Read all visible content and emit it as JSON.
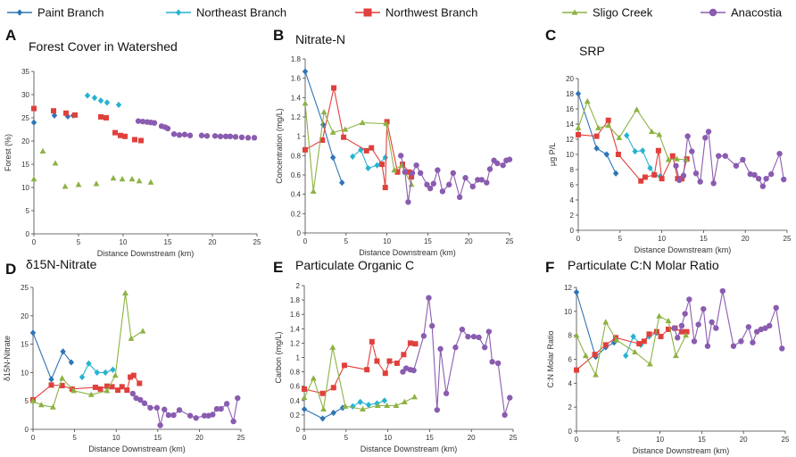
{
  "legend": [
    {
      "name": "Paint Branch",
      "color": "#2e75b6",
      "marker": "diamond"
    },
    {
      "name": "Northeast Branch",
      "color": "#27b3cf",
      "marker": "diamond"
    },
    {
      "name": "Northwest Branch",
      "color": "#e0403c",
      "marker": "square"
    },
    {
      "name": "Sligo Creek",
      "color": "#8db243",
      "marker": "triangle"
    },
    {
      "name": "Anacostia",
      "color": "#8a5cb0",
      "marker": "circle"
    }
  ],
  "chart_data": [
    {
      "panel": "A",
      "title": "Forest Cover in Watershed",
      "type": "scatter",
      "xlabel": "Distance Downstream (km)",
      "ylabel": "Forest (%)",
      "xlim": [
        0,
        25
      ],
      "xticks": [
        0,
        5,
        10,
        15,
        20,
        25
      ],
      "ylim": [
        0,
        35
      ],
      "yticks": [
        0,
        5,
        10,
        15,
        20,
        25,
        30,
        35
      ],
      "lines": false,
      "series": [
        {
          "name": "Paint Branch",
          "x": [
            0,
            2.3,
            3.8,
            4.4
          ],
          "y": [
            24,
            25.5,
            25.3,
            25.5
          ]
        },
        {
          "name": "Northeast Branch",
          "x": [
            6,
            6.8,
            7.5,
            8.2,
            9.5
          ],
          "y": [
            29.8,
            29.3,
            28.7,
            28.3,
            27.8
          ]
        },
        {
          "name": "Northwest Branch",
          "x": [
            0,
            2.2,
            3.6,
            4.6,
            7.5,
            8.1,
            9.1,
            9.7,
            10.2,
            11.3,
            12
          ],
          "y": [
            27,
            26.5,
            26,
            25.6,
            25.2,
            25,
            21.8,
            21.2,
            21,
            20.3,
            20.1
          ]
        },
        {
          "name": "Sligo Creek",
          "x": [
            0,
            1,
            2.4,
            3.5,
            5,
            7,
            8.9,
            9.9,
            11,
            11.8,
            13.1
          ],
          "y": [
            11.8,
            17.8,
            15.2,
            10.2,
            10.6,
            10.8,
            12,
            11.8,
            11.8,
            11.4,
            11.1
          ]
        },
        {
          "name": "Anacostia",
          "x": [
            11.7,
            12.2,
            12.7,
            13.1,
            13.5,
            14.3,
            14.7,
            15,
            15.7,
            16.3,
            16.9,
            17.5,
            18.8,
            19.4,
            20.3,
            20.9,
            21.5,
            22,
            22.6,
            23.3,
            24,
            24.7
          ],
          "y": [
            24.3,
            24.2,
            24.1,
            24,
            23.9,
            23.2,
            23,
            22.7,
            21.5,
            21.3,
            21.4,
            21.2,
            21.2,
            21.1,
            21.1,
            21,
            21,
            21,
            20.9,
            20.8,
            20.7,
            20.7
          ]
        }
      ]
    },
    {
      "panel": "B",
      "title": "Nitrate-N",
      "type": "line",
      "xlabel": "Distance Downstream (km)",
      "ylabel": "Concentration (mg/L)",
      "xlim": [
        0,
        25
      ],
      "xticks": [
        0,
        5,
        10,
        15,
        20,
        25
      ],
      "ylim": [
        0,
        1.8
      ],
      "yticks": [
        0,
        0.2,
        0.4,
        0.6,
        0.8,
        1,
        1.2,
        1.4,
        1.6,
        1.8
      ],
      "lines": true,
      "series": [
        {
          "name": "Paint Branch",
          "x": [
            0,
            2.2,
            3.4,
            4.5
          ],
          "y": [
            1.67,
            1.12,
            0.78,
            0.52
          ]
        },
        {
          "name": "Northeast Branch",
          "x": [
            5.8,
            6.8,
            7.7,
            8.8,
            9.8
          ],
          "y": [
            0.79,
            0.86,
            0.67,
            0.7,
            0.78
          ]
        },
        {
          "name": "Northwest Branch",
          "x": [
            0,
            2.1,
            3.5,
            4.7,
            7.5,
            8.1,
            9.4,
            9.8,
            10,
            11.3,
            11.9,
            12.7,
            13
          ],
          "y": [
            0.86,
            0.96,
            1.5,
            0.99,
            0.85,
            0.88,
            0.71,
            0.47,
            1.15,
            0.63,
            0.71,
            0.63,
            0.58
          ]
        },
        {
          "name": "Sligo Creek",
          "x": [
            0,
            1,
            2.3,
            3.4,
            4.9,
            7,
            9.9,
            10.9,
            11.8,
            13
          ],
          "y": [
            1.34,
            0.43,
            1.25,
            1.04,
            1.07,
            1.14,
            1.13,
            0.65,
            0.7,
            0.5
          ]
        },
        {
          "name": "Anacostia",
          "x": [
            11.7,
            12.2,
            12.6,
            13.1,
            13.6,
            14.1,
            14.9,
            15.3,
            15.7,
            16.2,
            16.8,
            17.6,
            18.1,
            18.9,
            19.6,
            20.5,
            21.1,
            21.6,
            22.2,
            22.6,
            23.1,
            23.5,
            24.2,
            24.6,
            25
          ],
          "y": [
            0.8,
            0.63,
            0.32,
            0.62,
            0.7,
            0.62,
            0.5,
            0.46,
            0.51,
            0.65,
            0.43,
            0.5,
            0.62,
            0.37,
            0.57,
            0.48,
            0.55,
            0.55,
            0.52,
            0.66,
            0.75,
            0.72,
            0.7,
            0.75,
            0.76
          ]
        }
      ]
    },
    {
      "panel": "C",
      "title": "SRP",
      "type": "line",
      "xlabel": "Distance Downstream (km)",
      "ylabel": "μg P/L",
      "xlim": [
        0,
        25
      ],
      "xticks": [
        0,
        5,
        10,
        15,
        20,
        25
      ],
      "ylim": [
        0,
        20
      ],
      "yticks": [
        0,
        2,
        4,
        6,
        8,
        10,
        12,
        14,
        16,
        18,
        20
      ],
      "lines": true,
      "series": [
        {
          "name": "Paint Branch",
          "x": [
            0,
            2.2,
            3.4,
            4.5
          ],
          "y": [
            18,
            10.8,
            10,
            7.5
          ]
        },
        {
          "name": "Northeast Branch",
          "x": [
            5.8,
            6.8,
            7.7,
            8.6,
            9.2,
            9.8
          ],
          "y": [
            12.5,
            10.4,
            10.5,
            8.2,
            7.3,
            7.1
          ]
        },
        {
          "name": "Northwest Branch",
          "x": [
            0,
            2.2,
            3.6,
            4.8,
            7.5,
            8,
            9.1,
            9.6,
            10,
            11.3,
            11.9,
            12.4,
            13
          ],
          "y": [
            12.6,
            12.4,
            14.5,
            10,
            6.5,
            7,
            7.3,
            10.5,
            6.8,
            9.8,
            6.8,
            6.8,
            9.4
          ]
        },
        {
          "name": "Sligo Creek",
          "x": [
            0,
            1.1,
            2.4,
            3.6,
            4.9,
            7,
            8.8,
            9.7,
            10.8,
            11.8,
            12.9
          ],
          "y": [
            13.5,
            17,
            13.5,
            13.8,
            12.2,
            15.9,
            13,
            12.6,
            9.3,
            9.4,
            9.3
          ]
        },
        {
          "name": "Anacostia",
          "x": [
            11.7,
            12.1,
            12.6,
            13.1,
            13.6,
            14.1,
            14.6,
            15.2,
            15.6,
            16.2,
            16.8,
            17.6,
            18.9,
            19.7,
            20.6,
            21.1,
            21.6,
            22.1,
            22.5,
            23.1,
            24.1,
            24.6
          ],
          "y": [
            8.5,
            6.6,
            7.2,
            12.4,
            10.4,
            7.5,
            6.4,
            12.2,
            13,
            6.2,
            9.8,
            9.8,
            8.5,
            9.3,
            7.4,
            7.3,
            6.8,
            5.8,
            6.8,
            7.4,
            10.1,
            6.7
          ]
        }
      ]
    },
    {
      "panel": "D",
      "title": "δ15N-Nitrate",
      "type": "line",
      "xlabel": "Distance Downstream (km)",
      "ylabel": "δ15N-Nitrate",
      "xlim": [
        0,
        25
      ],
      "xticks": [
        0,
        5,
        10,
        15,
        20,
        25
      ],
      "ylim": [
        0,
        25
      ],
      "yticks": [
        0,
        5,
        10,
        15,
        20,
        25
      ],
      "lines": true,
      "series": [
        {
          "name": "Paint Branch",
          "x": [
            0,
            2.2,
            3.6,
            4.6
          ],
          "y": [
            17,
            8.8,
            13.7,
            11.8
          ]
        },
        {
          "name": "Northeast Branch",
          "x": [
            5.9,
            6.7,
            7.7,
            8.7,
            9.6
          ],
          "y": [
            9.2,
            11.6,
            10,
            10,
            10.5
          ]
        },
        {
          "name": "Northwest Branch",
          "x": [
            0,
            2.2,
            3.5,
            4.7,
            7.5,
            8.1,
            8.9,
            9.5,
            10.2,
            10.7,
            11.3,
            11.7,
            12.1,
            12.8
          ],
          "y": [
            5.2,
            7.8,
            7.7,
            7.1,
            7.4,
            7.1,
            7.6,
            7.5,
            6.9,
            7.5,
            6.9,
            9.2,
            9.5,
            8.1
          ]
        },
        {
          "name": "Sligo Creek",
          "x": [
            0,
            1,
            2.4,
            3.5,
            4.9,
            7,
            8.9,
            9.9,
            11.1,
            11.8,
            13.2
          ],
          "y": [
            5,
            4.3,
            3.9,
            9,
            6.8,
            6.1,
            6.8,
            9.5,
            24,
            16,
            17.3
          ]
        },
        {
          "name": "Anacostia",
          "x": [
            12,
            12.4,
            12.9,
            13.4,
            14.1,
            14.9,
            15.3,
            15.8,
            16.3,
            16.9,
            17.6,
            18.9,
            19.6,
            20.6,
            21.1,
            21.6,
            22.1,
            22.6,
            23.3,
            24.1,
            24.6
          ],
          "y": [
            6.3,
            5.5,
            5.2,
            4.6,
            3.8,
            3.8,
            0.7,
            3.5,
            2.5,
            2.5,
            3.4,
            2.4,
            2,
            2.4,
            2.4,
            2.6,
            3.6,
            3.6,
            4.5,
            1.4,
            5.5
          ]
        }
      ]
    },
    {
      "panel": "E",
      "title": "Particulate Organic C",
      "type": "line",
      "xlabel": "Distance Downstream (km)",
      "ylabel": "Carbon (mg/L)",
      "xlim": [
        0,
        25
      ],
      "xticks": [
        0,
        5,
        10,
        15,
        20,
        25
      ],
      "ylim": [
        0,
        2
      ],
      "yticks": [
        0,
        0.2,
        0.4,
        0.6,
        0.8,
        1,
        1.2,
        1.4,
        1.6,
        1.8,
        2
      ],
      "lines": true,
      "series": [
        {
          "name": "Paint Branch",
          "x": [
            0,
            2.2,
            3.5,
            4.6
          ],
          "y": [
            0.28,
            0.15,
            0.23,
            0.3
          ]
        },
        {
          "name": "Northeast Branch",
          "x": [
            5.8,
            6.7,
            7.7,
            8.7,
            9.6
          ],
          "y": [
            0.32,
            0.38,
            0.34,
            0.36,
            0.4
          ]
        },
        {
          "name": "Northwest Branch",
          "x": [
            0,
            2.2,
            3.5,
            4.8,
            7.5,
            8.1,
            8.7,
            9.7,
            10.2,
            11.1,
            11.9,
            12.7,
            13.3
          ],
          "y": [
            0.56,
            0.5,
            0.58,
            0.89,
            0.83,
            1.22,
            0.95,
            0.78,
            0.95,
            0.92,
            1.04,
            1.2,
            1.19
          ]
        },
        {
          "name": "Sligo Creek",
          "x": [
            0,
            1.1,
            2.3,
            3.4,
            4.9,
            7,
            8.8,
            9.9,
            11,
            12,
            13.2
          ],
          "y": [
            0.44,
            0.71,
            0.28,
            1.14,
            0.32,
            0.28,
            0.33,
            0.33,
            0.33,
            0.38,
            0.45
          ]
        },
        {
          "name": "Anacostia",
          "x": [
            11.8,
            12.2,
            12.7,
            13.1,
            14.3,
            14.9,
            15.3,
            15.9,
            16.3,
            17,
            18.1,
            18.9,
            19.6,
            20.3,
            20.9,
            21.6,
            22.1,
            22.5,
            23.2,
            24,
            24.6
          ],
          "y": [
            0.8,
            0.85,
            0.83,
            0.82,
            1.3,
            1.83,
            1.44,
            0.27,
            1.12,
            0.5,
            1.14,
            1.39,
            1.29,
            1.29,
            1.28,
            1.14,
            1.36,
            0.94,
            0.92,
            0.2,
            0.44
          ]
        }
      ]
    },
    {
      "panel": "F",
      "title": "Particulate C:N Molar Ratio",
      "type": "line",
      "xlabel": "Distance Downstream (km)",
      "ylabel": "C:N Molar Ratio",
      "xlim": [
        0,
        25
      ],
      "xticks": [
        0,
        5,
        10,
        15,
        20,
        25
      ],
      "ylim": [
        0,
        12
      ],
      "yticks": [
        0,
        2,
        4,
        6,
        8,
        10,
        12
      ],
      "lines": true,
      "series": [
        {
          "name": "Paint Branch",
          "x": [
            0,
            2.3,
            3.5,
            4.5
          ],
          "y": [
            11.6,
            6.2,
            7,
            7.4
          ]
        },
        {
          "name": "Northeast Branch",
          "x": [
            5.9,
            6.8,
            7.7,
            8.7,
            9.6
          ],
          "y": [
            6.3,
            7.9,
            7.2,
            7.9,
            8.2
          ]
        },
        {
          "name": "Northwest Branch",
          "x": [
            0,
            2.2,
            3.5,
            4.7,
            7.5,
            8.1,
            8.7,
            9.6,
            10.1,
            11,
            11.8,
            12.6,
            13.2
          ],
          "y": [
            5.1,
            6.4,
            7.2,
            7.8,
            7.3,
            7.5,
            8.1,
            8.3,
            7.9,
            8.5,
            8.6,
            8.3,
            8.3
          ]
        },
        {
          "name": "Sligo Creek",
          "x": [
            0,
            1.1,
            2.3,
            3.5,
            4.8,
            7,
            8.8,
            9.9,
            11,
            11.9,
            13.1
          ],
          "y": [
            8,
            6.3,
            4.7,
            9.1,
            7.6,
            6.6,
            5.6,
            9.6,
            9.2,
            6.3,
            8
          ]
        },
        {
          "name": "Anacostia",
          "x": [
            11.7,
            12.1,
            12.6,
            13,
            13.5,
            14.1,
            14.6,
            15.2,
            15.7,
            16.2,
            16.7,
            17.5,
            18.8,
            19.7,
            20.6,
            21.1,
            21.6,
            22.1,
            22.6,
            23.1,
            23.9,
            24.6
          ],
          "y": [
            8.6,
            7.8,
            8.8,
            9.8,
            11,
            7.5,
            8.9,
            10.2,
            7.1,
            9.1,
            8.6,
            11.7,
            7.1,
            7.5,
            8.7,
            7.4,
            8.3,
            8.5,
            8.6,
            8.8,
            10.3,
            6.9
          ]
        }
      ]
    }
  ]
}
